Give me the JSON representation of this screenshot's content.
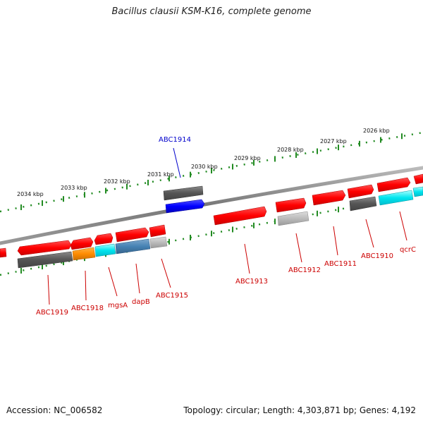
{
  "title": "Bacillus clausii KSM-K16, complete genome",
  "footer": {
    "accession": "Accession: NC_006582",
    "summary": "Topology: circular; Length: 4,303,871 bp; Genes: 4,192"
  },
  "ruler": {
    "ticks": [
      "2026 kbp",
      "2027 kbp",
      "2028 kbp",
      "2029 kbp",
      "2030 kbp",
      "2031 kbp",
      "2032 kbp",
      "2033 kbp",
      "2034 kbp"
    ]
  },
  "genes": [
    {
      "label": "ABC1910"
    },
    {
      "label": "qcrC"
    },
    {
      "label": "ABC1911"
    },
    {
      "label": "ABC1912"
    },
    {
      "label": "ABC1913"
    },
    {
      "label": "ABC1914"
    },
    {
      "label": "ABC1915"
    },
    {
      "label": "dapB"
    },
    {
      "label": "mgsA"
    },
    {
      "label": "ABC1918"
    },
    {
      "label": "ABC1919"
    }
  ],
  "colors": {
    "cds": "#ff0000",
    "cds_grey": "#555555",
    "cds_light_grey": "#bbbbbb",
    "cyan": "#00e5ee",
    "steel_blue": "#4682b4",
    "orange": "#ff8c00",
    "blue": "#0000ff",
    "label_red": "#cc0000",
    "label_blue": "#0000cc",
    "tick_green": "#228b22",
    "backbone": "#888888"
  }
}
